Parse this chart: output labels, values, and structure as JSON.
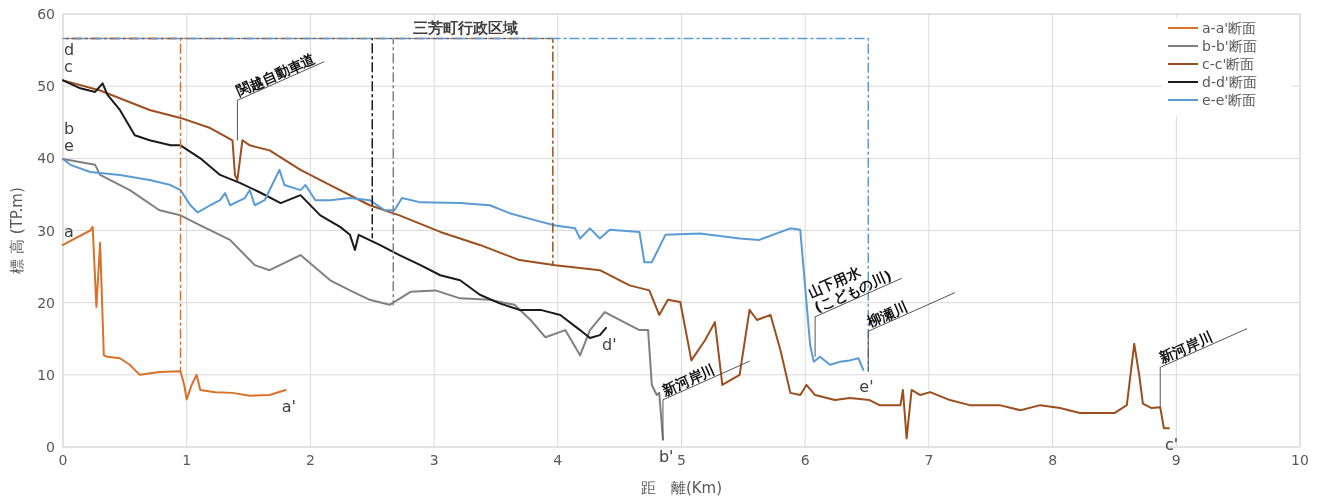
{
  "chart_data": {
    "type": "line",
    "xlabel": "距　離(Km)",
    "ylabel": "標 高 (TP.m)",
    "xlim": [
      0,
      10
    ],
    "ylim": [
      0,
      60
    ],
    "xticks": [
      0,
      1,
      2,
      3,
      4,
      5,
      6,
      7,
      8,
      9,
      10
    ],
    "yticks": [
      0,
      10,
      20,
      30,
      40,
      50,
      60
    ],
    "grid": true,
    "legend": "top right",
    "series": [
      {
        "name": "a-a'断面",
        "color": "#d9712b",
        "x": [
          0,
          0.22,
          0.24,
          0.27,
          0.3,
          0.33,
          0.36,
          0.46,
          0.54,
          0.62,
          0.78,
          0.95,
          0.98,
          1.0,
          1.04,
          1.08,
          1.11,
          1.23,
          1.37,
          1.51,
          1.67,
          1.8
        ],
        "values": [
          28.0,
          30.0,
          30.5,
          19.4,
          28.3,
          12.7,
          12.5,
          12.3,
          11.4,
          10.0,
          10.4,
          10.5,
          8.6,
          6.6,
          8.6,
          10.0,
          7.9,
          7.6,
          7.5,
          7.1,
          7.2,
          7.9
        ]
      },
      {
        "name": "b-b'断面",
        "color": "#808080",
        "x": [
          0,
          0.26,
          0.3,
          0.54,
          0.78,
          0.95,
          1.11,
          1.35,
          1.55,
          1.67,
          1.92,
          2.16,
          2.32,
          2.48,
          2.64,
          2.81,
          3.01,
          3.21,
          3.45,
          3.65,
          3.78,
          3.9,
          4.06,
          4.18,
          4.26,
          4.38,
          4.5,
          4.66,
          4.73,
          4.76,
          4.8,
          4.82,
          4.85
        ],
        "values": [
          39.9,
          39.1,
          37.7,
          35.6,
          32.8,
          32.1,
          30.7,
          28.7,
          25.2,
          24.5,
          26.6,
          23.1,
          21.7,
          20.4,
          19.7,
          21.5,
          21.7,
          20.6,
          20.4,
          19.7,
          17.6,
          15.2,
          16.2,
          12.7,
          16.2,
          18.7,
          17.6,
          16.2,
          16.2,
          8.6,
          7.2,
          7.5,
          1.0
        ]
      },
      {
        "name": "c-c'断面",
        "color": "#9c4f1e",
        "x": [
          0,
          0.3,
          0.7,
          0.95,
          1.19,
          1.37,
          1.39,
          1.41,
          1.45,
          1.51,
          1.67,
          1.92,
          2.16,
          2.48,
          2.72,
          3.05,
          3.37,
          3.69,
          3.98,
          4.34,
          4.58,
          4.74,
          4.82,
          4.89,
          4.99,
          5.08,
          5.19,
          5.27,
          5.33,
          5.47,
          5.55,
          5.61,
          5.72,
          5.8,
          5.88,
          5.96,
          6.01,
          6.08,
          6.24,
          6.36,
          6.52,
          6.6,
          6.77,
          6.79,
          6.82,
          6.86,
          6.93,
          7.01,
          7.17,
          7.33,
          7.57,
          7.74,
          7.9,
          8.06,
          8.22,
          8.5,
          8.6,
          8.66,
          8.7,
          8.73,
          8.8,
          8.87,
          8.9,
          8.94
        ],
        "values": [
          50.8,
          49.4,
          46.7,
          45.6,
          44.2,
          42.5,
          37.7,
          37.0,
          42.5,
          41.8,
          41.1,
          38.4,
          36.3,
          33.5,
          32.1,
          29.8,
          28.0,
          25.9,
          25.2,
          24.5,
          22.4,
          21.7,
          18.3,
          20.4,
          20.1,
          12.0,
          14.8,
          17.3,
          8.6,
          10.0,
          19.0,
          17.6,
          18.3,
          13.4,
          7.5,
          7.2,
          8.6,
          7.2,
          6.5,
          6.8,
          6.5,
          5.8,
          5.8,
          7.9,
          1.2,
          7.9,
          7.2,
          7.6,
          6.5,
          5.8,
          5.8,
          5.1,
          5.8,
          5.4,
          4.7,
          4.7,
          5.8,
          14.3,
          10.0,
          6.0,
          5.4,
          5.5,
          2.6,
          2.6
        ]
      },
      {
        "name": "d-d'断面",
        "color": "#1a1a1a",
        "x": [
          0,
          0.14,
          0.26,
          0.32,
          0.36,
          0.46,
          0.58,
          0.7,
          0.87,
          0.95,
          1.11,
          1.27,
          1.43,
          1.59,
          1.76,
          1.92,
          2.08,
          2.24,
          2.32,
          2.36,
          2.39,
          2.56,
          2.72,
          2.89,
          3.05,
          3.21,
          3.37,
          3.53,
          3.69,
          3.86,
          4.02,
          4.18,
          4.26,
          4.34,
          4.39
        ],
        "values": [
          50.8,
          49.7,
          49.2,
          50.4,
          48.8,
          46.7,
          43.2,
          42.5,
          41.8,
          41.8,
          40.0,
          37.7,
          36.6,
          35.3,
          33.8,
          34.9,
          32.1,
          30.5,
          29.4,
          27.3,
          29.4,
          28.0,
          26.6,
          25.2,
          23.8,
          23.1,
          21.1,
          19.9,
          19.0,
          19.0,
          18.3,
          16.2,
          15.1,
          15.5,
          16.5
        ]
      },
      {
        "name": "e-e'断面",
        "color": "#5b9bd5",
        "x": [
          0,
          0.06,
          0.22,
          0.46,
          0.7,
          0.87,
          0.95,
          1.03,
          1.09,
          1.19,
          1.27,
          1.31,
          1.35,
          1.47,
          1.51,
          1.55,
          1.63,
          1.69,
          1.75,
          1.79,
          1.92,
          1.96,
          2.04,
          2.16,
          2.32,
          2.48,
          2.6,
          2.68,
          2.74,
          2.89,
          3.21,
          3.45,
          3.61,
          3.82,
          3.98,
          4.14,
          4.18,
          4.26,
          4.34,
          4.42,
          4.66,
          4.7,
          4.76,
          4.87,
          5.15,
          5.47,
          5.63,
          5.88,
          5.96,
          6.04,
          6.07,
          6.12,
          6.2,
          6.28,
          6.36,
          6.43,
          6.47
        ],
        "values": [
          39.9,
          39.1,
          38.1,
          37.7,
          37.0,
          36.3,
          35.6,
          33.5,
          32.5,
          33.5,
          34.2,
          35.2,
          33.5,
          34.5,
          35.6,
          33.5,
          34.2,
          36.3,
          38.4,
          36.3,
          35.6,
          36.3,
          34.2,
          34.2,
          34.5,
          34.2,
          32.8,
          32.8,
          34.5,
          33.9,
          33.8,
          33.5,
          32.4,
          31.4,
          30.7,
          30.3,
          28.9,
          30.3,
          28.9,
          30.1,
          29.8,
          25.6,
          25.6,
          29.4,
          29.6,
          28.9,
          28.7,
          30.3,
          30.1,
          14.1,
          11.8,
          12.5,
          11.4,
          11.8,
          12.0,
          12.3,
          10.7
        ]
      },
      {
        "color": "#d9712b",
        "line_style": "dashed",
        "x": [
          0,
          0.95,
          0.95
        ],
        "values": [
          56.6,
          56.6,
          10.5
        ]
      },
      {
        "color": "#1a1a1a",
        "line_style": "dashed",
        "x": [
          2.5,
          2.5
        ],
        "values": [
          56.6,
          29.0
        ]
      },
      {
        "color": "#808080",
        "line_style": "dashed",
        "x": [
          2.67,
          2.67
        ],
        "values": [
          56.6,
          19.7
        ]
      },
      {
        "color": "#9c4f1e",
        "line_style": "dashed",
        "x": [
          0,
          3.96,
          3.96
        ],
        "values": [
          56.6,
          56.6,
          25.2
        ]
      },
      {
        "color": "#5b9bd5",
        "line_style": "dashed",
        "x": [
          0,
          6.51,
          6.51
        ],
        "values": [
          56.6,
          56.6,
          10.5
        ]
      }
    ],
    "annotations": [
      "三芳町行政区域",
      {
        "text": "c",
        "x": 0,
        "y": 50.8
      },
      {
        "text": "d",
        "x": 0,
        "y": 50.8
      },
      {
        "text": "e",
        "x": 0,
        "y": 39.9
      },
      {
        "text": "b",
        "x": 0,
        "y": 39.9
      },
      {
        "text": "a",
        "x": 0,
        "y": 28.0
      },
      {
        "text": "a'",
        "x": 1.8,
        "y": 7.9
      },
      {
        "text": "d'",
        "x": 4.39,
        "y": 16.5
      },
      {
        "text": "b'",
        "x": 4.85,
        "y": 1.0
      },
      {
        "text": "e'",
        "x": 6.47,
        "y": 10.7
      },
      {
        "text": "c'",
        "x": 8.94,
        "y": 2.6
      },
      {
        "text": "関越自動車道",
        "x": 1.41,
        "y": 42.5
      },
      {
        "text": "新河岸川",
        "x": 4.85,
        "y": 1.0
      },
      {
        "text": "山下用水\n(こどもの川)",
        "x": 6.08,
        "y": 12.5
      },
      {
        "text": "柳瀬川",
        "x": 6.51,
        "y": 10.5
      },
      {
        "text": "新河岸川",
        "x": 8.87,
        "y": 5.5
      }
    ]
  }
}
